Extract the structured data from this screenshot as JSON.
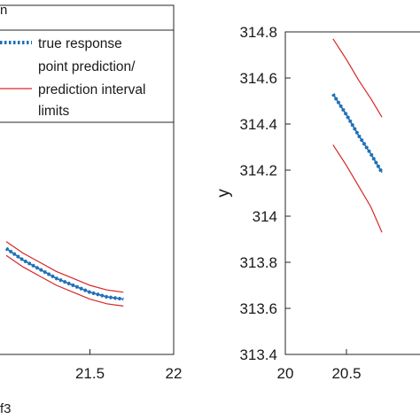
{
  "chart_data": [
    {
      "type": "line",
      "xlim": [
        21,
        22
      ],
      "xticks": [
        21.5,
        22
      ],
      "xtick_labels": [
        "21.5",
        "22"
      ],
      "grid": false,
      "legend": {
        "placement": "top-right",
        "entries": [
          {
            "label_lines": [
              "true response"
            ],
            "color": "#1f6fb5",
            "style": "dotted"
          },
          {
            "label_lines": [
              "point prediction/"
            ],
            "color": "#1f6fb5",
            "style": "solid"
          },
          {
            "label_lines": [
              "prediction interval",
              "limits"
            ],
            "color": "#d62728",
            "style": "solid"
          }
        ]
      },
      "series": [
        {
          "role": "point_prediction",
          "color": "#1f6fb5",
          "style": "solid",
          "x": [
            21.0,
            21.1,
            21.2,
            21.3,
            21.4,
            21.5,
            21.6,
            21.7
          ],
          "y": [
            313.86,
            313.81,
            313.77,
            313.73,
            313.7,
            313.67,
            313.65,
            313.64
          ]
        },
        {
          "role": "true_response",
          "color": "#1f6fb5",
          "style": "dotted",
          "x": [
            21.0,
            21.1,
            21.2,
            21.3,
            21.4,
            21.5,
            21.6,
            21.7
          ],
          "y": [
            313.86,
            313.81,
            313.77,
            313.73,
            313.7,
            313.67,
            313.65,
            313.64
          ]
        },
        {
          "role": "upper_limit",
          "color": "#d62728",
          "style": "solid",
          "x": [
            21.0,
            21.1,
            21.2,
            21.3,
            21.4,
            21.5,
            21.6,
            21.7
          ],
          "y": [
            313.89,
            313.84,
            313.8,
            313.76,
            313.73,
            313.7,
            313.68,
            313.67
          ]
        },
        {
          "role": "lower_limit",
          "color": "#d62728",
          "style": "solid",
          "x": [
            21.0,
            21.1,
            21.2,
            21.3,
            21.4,
            21.5,
            21.6,
            21.7
          ],
          "y": [
            313.83,
            313.78,
            313.74,
            313.7,
            313.67,
            313.64,
            313.62,
            313.61
          ]
        }
      ]
    },
    {
      "type": "line",
      "ylabel": "y",
      "xlim": [
        20,
        21
      ],
      "ylim": [
        313.4,
        314.8
      ],
      "xticks": [
        20,
        20.5
      ],
      "xtick_labels": [
        "20",
        "20.5"
      ],
      "yticks": [
        313.4,
        313.6,
        313.8,
        314,
        314.2,
        314.4,
        314.6,
        314.8
      ],
      "ytick_labels": [
        "313.4",
        "313.6",
        "313.8",
        "314",
        "314.2",
        "314.4",
        "314.6",
        "314.8"
      ],
      "grid": false,
      "series": [
        {
          "role": "point_prediction",
          "color": "#1f6fb5",
          "style": "solid",
          "x": [
            20.39,
            20.5,
            20.6,
            20.7,
            20.79
          ],
          "y": [
            314.53,
            314.44,
            314.35,
            314.27,
            314.19
          ]
        },
        {
          "role": "true_response",
          "color": "#1f6fb5",
          "style": "dotted",
          "x": [
            20.39,
            20.5,
            20.6,
            20.7,
            20.79
          ],
          "y": [
            314.53,
            314.44,
            314.35,
            314.27,
            314.19
          ]
        },
        {
          "role": "upper_limit",
          "color": "#d62728",
          "style": "solid",
          "x": [
            20.39,
            20.5,
            20.6,
            20.7,
            20.79
          ],
          "y": [
            314.77,
            314.68,
            314.59,
            314.51,
            314.43
          ]
        },
        {
          "role": "lower_limit",
          "color": "#d62728",
          "style": "solid",
          "x": [
            20.39,
            20.5,
            20.6,
            20.7,
            20.79
          ],
          "y": [
            314.31,
            314.22,
            314.13,
            314.04,
            313.93
          ]
        }
      ]
    }
  ],
  "fragments": {
    "bottom_left": "f3",
    "top_left": "n"
  }
}
